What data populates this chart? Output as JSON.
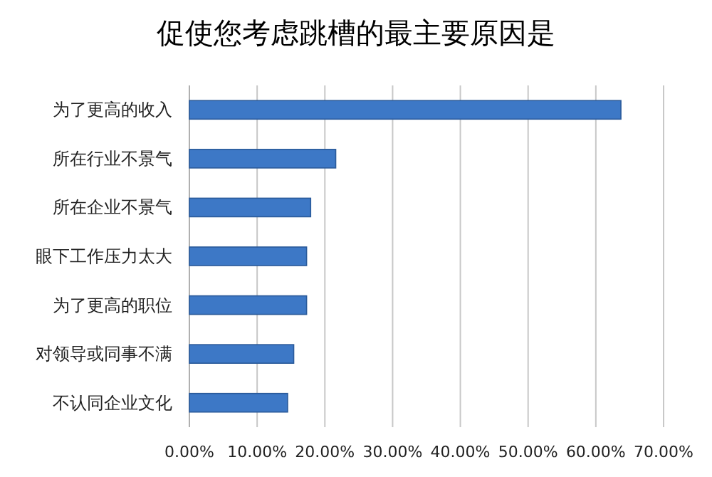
{
  "chart_data": {
    "type": "bar",
    "orientation": "horizontal",
    "title": "促使您考虑跳槽的最主要原因是",
    "categories": [
      "为了更高的收入",
      "所在行业不景气",
      "所在企业不景气",
      "眼下工作压力太大",
      "为了更高的职位",
      "对领导或同事不满",
      "不认同企业文化"
    ],
    "values": [
      63.7,
      21.6,
      17.9,
      17.3,
      17.3,
      15.4,
      14.5
    ],
    "color": "#3d78c6",
    "xlim": [
      0,
      70
    ],
    "xticks": [
      {
        "value": 0,
        "label": "0.00%"
      },
      {
        "value": 10,
        "label": "10.00%"
      },
      {
        "value": 20,
        "label": "20.00%"
      },
      {
        "value": 30,
        "label": "30.00%"
      },
      {
        "value": 40,
        "label": "40.00%"
      },
      {
        "value": 50,
        "label": "50.00%"
      },
      {
        "value": 60,
        "label": "60.00%"
      },
      {
        "value": 70,
        "label": "70.00%"
      }
    ],
    "grid": "x"
  }
}
